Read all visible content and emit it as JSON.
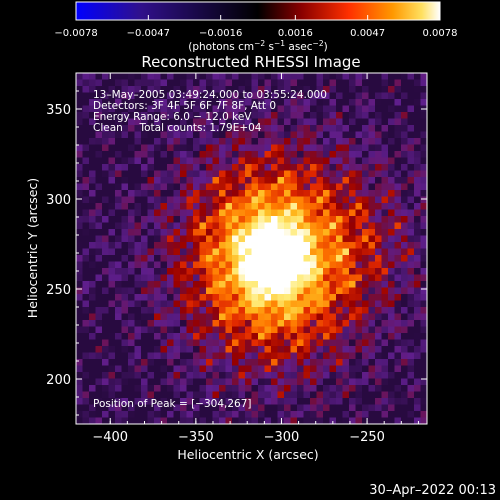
{
  "colorbar": {
    "min": -0.0078,
    "max": 0.0078,
    "ticks": [
      -0.0078,
      -0.0047,
      -0.0016,
      0.0016,
      0.0047,
      0.0078
    ],
    "tick_labels": [
      "−0.0078",
      "−0.0047",
      "−0.0016",
      "0.0016",
      "0.0047",
      "0.0078"
    ],
    "unit_prefix": "(photons cm",
    "unit_sup1": "−2",
    "unit_mid": " s",
    "unit_sup2": "−1",
    "unit_mid2": " asec",
    "unit_sup3": "−2",
    "unit_suffix": ")",
    "colors": [
      "#0000ff",
      "#3a0080",
      "#000000",
      "#7a0000",
      "#ff4000",
      "#ffa000",
      "#ffff80",
      "#ffffff"
    ]
  },
  "chart_data": {
    "type": "heatmap",
    "title": "Reconstructed RHESSI Image",
    "xlabel": "Heliocentric X (arcsec)",
    "ylabel": "Heliocentric Y (arcsec)",
    "xlim": [
      -420,
      -215
    ],
    "ylim": [
      175,
      370
    ],
    "x_ticks": [
      -400,
      -350,
      -300,
      -250
    ],
    "x_tick_labels": [
      "−400",
      "−350",
      "−300",
      "−250"
    ],
    "y_ticks": [
      200,
      250,
      300,
      350
    ],
    "y_tick_labels": [
      "200",
      "250",
      "300",
      "350"
    ],
    "peak": {
      "x": -304,
      "y": 267
    },
    "annotations": {
      "time": "13–May–2005 03:49:24.000 to 03:55:24.000",
      "detectors": "Detectors: 3F 4F 5F 6F 7F 8F, Att 0",
      "energy": "Energy Range: 6.0 − 12.0 keV",
      "clean": "Clean     Total counts: 1.79E+04",
      "peak_text": "Position of Peak = [−304,267]"
    }
  },
  "footer": {
    "timestamp": "30–Apr–2022 00:13"
  }
}
